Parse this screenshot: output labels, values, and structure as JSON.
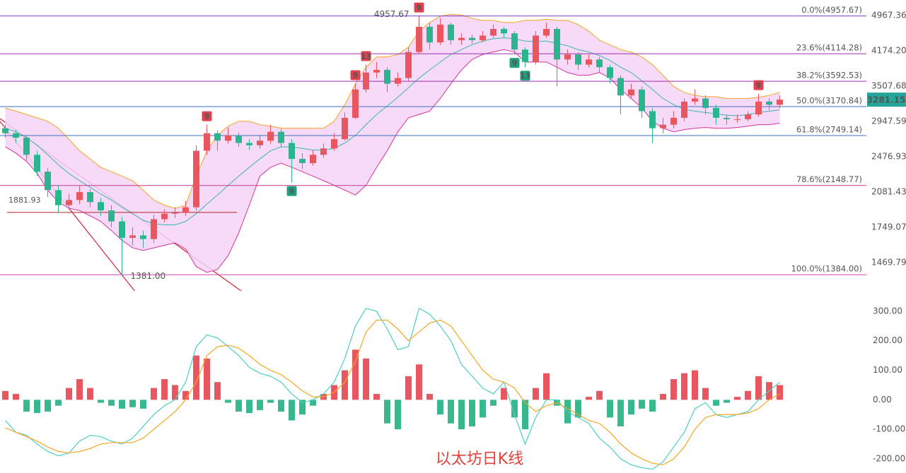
{
  "chart_data": [
    {
      "type": "candlestick",
      "log_scale": true,
      "grid": false,
      "ylim": [
        1287,
        5363
      ],
      "yticks": [
        4967.36,
        {
          "value": 4174.2,
          "label": "4174.20"
        },
        3507.68,
        2947.59,
        2476.93,
        2081.43,
        1749.07,
        1469.79
      ],
      "up_color": "#e8575f",
      "down_color": "#2bb58e",
      "candles": [
        {
          "open": 2850,
          "high": 2900,
          "low": 2720,
          "close": 2780
        },
        {
          "open": 2780,
          "high": 2830,
          "low": 2650,
          "close": 2720
        },
        {
          "open": 2720,
          "high": 2760,
          "low": 2430,
          "close": 2500
        },
        {
          "open": 2500,
          "high": 2550,
          "low": 2250,
          "close": 2300
        },
        {
          "open": 2300,
          "high": 2340,
          "low": 2030,
          "close": 2100
        },
        {
          "open": 2100,
          "high": 2150,
          "low": 1880,
          "close": 1950
        },
        {
          "open": 1950,
          "high": 2060,
          "low": 1910,
          "close": 2000
        },
        {
          "open": 2000,
          "high": 2140,
          "low": 1960,
          "close": 2080
        },
        {
          "open": 2080,
          "high": 2110,
          "low": 1930,
          "close": 1980
        },
        {
          "open": 1980,
          "high": 2020,
          "low": 1850,
          "close": 1900
        },
        {
          "open": 1900,
          "high": 1950,
          "low": 1750,
          "close": 1800
        },
        {
          "open": 1800,
          "high": 1840,
          "low": 1381,
          "close": 1660
        },
        {
          "open": 1660,
          "high": 1750,
          "low": 1600,
          "close": 1680
        },
        {
          "open": 1680,
          "high": 1720,
          "low": 1580,
          "close": 1650
        },
        {
          "open": 1650,
          "high": 1860,
          "low": 1620,
          "close": 1820
        },
        {
          "open": 1820,
          "high": 1910,
          "low": 1790,
          "close": 1870
        },
        {
          "open": 1870,
          "high": 1930,
          "low": 1830,
          "close": 1880
        },
        {
          "open": 1880,
          "high": 1990,
          "low": 1850,
          "close": 1930
        },
        {
          "open": 1930,
          "high": 2620,
          "low": 1900,
          "close": 2550
        },
        {
          "open": 2550,
          "high": 2900,
          "low": 2500,
          "close": 2780
        },
        {
          "open": 2780,
          "high": 2820,
          "low": 2550,
          "close": 2680
        },
        {
          "open": 2680,
          "high": 2860,
          "low": 2640,
          "close": 2750
        },
        {
          "open": 2750,
          "high": 2790,
          "low": 2600,
          "close": 2650
        },
        {
          "open": 2650,
          "high": 2700,
          "low": 2560,
          "close": 2620
        },
        {
          "open": 2620,
          "high": 2760,
          "low": 2580,
          "close": 2680
        },
        {
          "open": 2680,
          "high": 2900,
          "low": 2640,
          "close": 2800
        },
        {
          "open": 2800,
          "high": 2840,
          "low": 2600,
          "close": 2650
        },
        {
          "open": 2650,
          "high": 2700,
          "low": 2180,
          "close": 2450
        },
        {
          "open": 2450,
          "high": 2520,
          "low": 2330,
          "close": 2400
        },
        {
          "open": 2400,
          "high": 2560,
          "low": 2370,
          "close": 2500
        },
        {
          "open": 2500,
          "high": 2640,
          "low": 2460,
          "close": 2580
        },
        {
          "open": 2580,
          "high": 2780,
          "low": 2550,
          "close": 2700
        },
        {
          "open": 2700,
          "high": 3080,
          "low": 2680,
          "close": 3000
        },
        {
          "open": 3000,
          "high": 3550,
          "low": 2980,
          "close": 3450
        },
        {
          "open": 3450,
          "high": 3900,
          "low": 3400,
          "close": 3750
        },
        {
          "open": 3750,
          "high": 3950,
          "low": 3650,
          "close": 3800
        },
        {
          "open": 3800,
          "high": 3850,
          "low": 3400,
          "close": 3550
        },
        {
          "open": 3550,
          "high": 3750,
          "low": 3500,
          "close": 3650
        },
        {
          "open": 3650,
          "high": 4250,
          "low": 3600,
          "close": 4150
        },
        {
          "open": 4150,
          "high": 4957.67,
          "low": 4100,
          "close": 4700
        },
        {
          "open": 4700,
          "high": 4800,
          "low": 4200,
          "close": 4350
        },
        {
          "open": 4350,
          "high": 4900,
          "low": 4300,
          "close": 4750
        },
        {
          "open": 4750,
          "high": 4800,
          "low": 4300,
          "close": 4400
        },
        {
          "open": 4400,
          "high": 4550,
          "low": 4300,
          "close": 4450
        },
        {
          "open": 4450,
          "high": 4520,
          "low": 4320,
          "close": 4400
        },
        {
          "open": 4400,
          "high": 4600,
          "low": 4350,
          "close": 4500
        },
        {
          "open": 4500,
          "high": 4750,
          "low": 4450,
          "close": 4650
        },
        {
          "open": 4650,
          "high": 4700,
          "low": 4450,
          "close": 4550
        },
        {
          "open": 4550,
          "high": 4600,
          "low": 4100,
          "close": 4200
        },
        {
          "open": 4200,
          "high": 4250,
          "low": 3850,
          "close": 3950
        },
        {
          "open": 3950,
          "high": 4600,
          "low": 3900,
          "close": 4500
        },
        {
          "open": 4500,
          "high": 4800,
          "low": 4450,
          "close": 4650
        },
        {
          "open": 4650,
          "high": 4700,
          "low": 3500,
          "close": 4000
        },
        {
          "open": 4000,
          "high": 4200,
          "low": 3900,
          "close": 4100
        },
        {
          "open": 4100,
          "high": 4150,
          "low": 3800,
          "close": 3900
        },
        {
          "open": 3900,
          "high": 4100,
          "low": 3850,
          "close": 4000
        },
        {
          "open": 4000,
          "high": 4050,
          "low": 3750,
          "close": 3850
        },
        {
          "open": 3850,
          "high": 3900,
          "low": 3550,
          "close": 3650
        },
        {
          "open": 3650,
          "high": 3700,
          "low": 3050,
          "close": 3350
        },
        {
          "open": 3350,
          "high": 3550,
          "low": 3300,
          "close": 3450
        },
        {
          "open": 3450,
          "high": 3500,
          "low": 3000,
          "close": 3100
        },
        {
          "open": 3100,
          "high": 3150,
          "low": 2650,
          "close": 2850
        },
        {
          "open": 2850,
          "high": 3000,
          "low": 2780,
          "close": 2900
        },
        {
          "open": 2900,
          "high": 3100,
          "low": 2850,
          "close": 3000
        },
        {
          "open": 3000,
          "high": 3300,
          "low": 2950,
          "close": 3250
        },
        {
          "open": 3250,
          "high": 3450,
          "low": 3200,
          "close": 3300
        },
        {
          "open": 3300,
          "high": 3350,
          "low": 3050,
          "close": 3150
        },
        {
          "open": 3150,
          "high": 3200,
          "low": 2900,
          "close": 3000
        },
        {
          "open": 3000,
          "high": 3050,
          "low": 2900,
          "close": 2980
        },
        {
          "open": 2980,
          "high": 3050,
          "low": 2930,
          "close": 2980
        },
        {
          "open": 2980,
          "high": 3100,
          "low": 2950,
          "close": 3050
        },
        {
          "open": 3050,
          "high": 3380,
          "low": 3020,
          "close": 3250
        },
        {
          "open": 3250,
          "high": 3300,
          "low": 3120,
          "close": 3200
        },
        {
          "open": 3200,
          "high": 3350,
          "low": 3150,
          "close": 3281.15
        }
      ],
      "bands": {
        "fill": "#f4d3f6",
        "upper_color": "#f5a623",
        "middle_color": "#3cb5b0",
        "lower_color": "#d6339e",
        "upper": [
          3150,
          3100,
          3050,
          3000,
          2950,
          2850,
          2700,
          2550,
          2450,
          2350,
          2300,
          2250,
          2200,
          2100,
          2000,
          1950,
          1920,
          1950,
          2250,
          2550,
          2750,
          2880,
          2950,
          2950,
          2900,
          2880,
          2850,
          2850,
          2850,
          2850,
          2850,
          2950,
          3200,
          3550,
          3850,
          4050,
          4050,
          4100,
          4250,
          4600,
          4800,
          4950,
          5000,
          4980,
          4900,
          4850,
          4850,
          4800,
          4800,
          4850,
          4850,
          4880,
          4850,
          4850,
          4750,
          4600,
          4400,
          4300,
          4200,
          4150,
          4050,
          3900,
          3700,
          3500,
          3400,
          3350,
          3330,
          3330,
          3300,
          3300,
          3300,
          3320,
          3350,
          3400
        ],
        "middle": [
          2850,
          2800,
          2720,
          2620,
          2500,
          2380,
          2280,
          2200,
          2130,
          2060,
          2000,
          1930,
          1870,
          1810,
          1780,
          1770,
          1770,
          1800,
          1870,
          1960,
          2050,
          2150,
          2250,
          2350,
          2450,
          2550,
          2600,
          2600,
          2580,
          2560,
          2560,
          2580,
          2650,
          2750,
          2900,
          3050,
          3180,
          3320,
          3480,
          3650,
          3800,
          3950,
          4100,
          4200,
          4300,
          4380,
          4430,
          4450,
          4430,
          4380,
          4370,
          4380,
          4330,
          4280,
          4200,
          4150,
          4080,
          3980,
          3850,
          3750,
          3600,
          3450,
          3300,
          3200,
          3130,
          3100,
          3080,
          3060,
          3040,
          3030,
          3050,
          3080,
          3100,
          3120
        ],
        "lower": [
          2600,
          2520,
          2420,
          2280,
          2100,
          1980,
          1920,
          1900,
          1850,
          1800,
          1720,
          1640,
          1580,
          1560,
          1580,
          1600,
          1620,
          1570,
          1440,
          1400,
          1420,
          1520,
          1700,
          1950,
          2250,
          2350,
          2400,
          2350,
          2300,
          2250,
          2200,
          2150,
          2100,
          2050,
          2150,
          2350,
          2550,
          2800,
          3000,
          3050,
          3100,
          3300,
          3550,
          3800,
          4000,
          4100,
          4150,
          4200,
          4150,
          3950,
          3950,
          3950,
          3850,
          3750,
          3700,
          3700,
          3750,
          3650,
          3450,
          3300,
          3150,
          2950,
          2850,
          2800,
          2830,
          2850,
          2860,
          2850,
          2850,
          2860,
          2880,
          2900,
          2900,
          2920
        ]
      },
      "fib_levels": [
        {
          "value": 4957.67,
          "label": "0.0%(4957.67)",
          "color": "#7b3fc4"
        },
        {
          "value": 4114.28,
          "label": "23.6%(4114.28)",
          "color": "#9b2fae"
        },
        {
          "value": 3592.53,
          "label": "38.2%(3592.53)",
          "color": "#9b2fae"
        },
        {
          "value": 3170.84,
          "label": "50.0%(3170.84)",
          "color": "#3d6fc4"
        },
        {
          "value": 2749.14,
          "label": "61.8%(2749.14)",
          "color": "#3d6fc4"
        },
        {
          "value": 2148.77,
          "label": "78.6%(2148.77)",
          "color": "#c2378f"
        },
        {
          "value": 1384.0,
          "label": "100.0%(1384.00)",
          "color": "#d446b0"
        }
      ],
      "hline": {
        "value": 1881.93,
        "label": "1881.93",
        "color": "#b0202a"
      },
      "annotations": [
        {
          "candle": 39,
          "label": "4957.67"
        },
        {
          "candle": 11,
          "label": "1381.00"
        }
      ],
      "td_marks": [
        {
          "candle": 19,
          "label": "9",
          "side": "up"
        },
        {
          "candle": 27,
          "label": "9",
          "side": "down"
        },
        {
          "candle": 33,
          "label": "9",
          "side": "up"
        },
        {
          "candle": 34,
          "label": "13",
          "side": "up"
        },
        {
          "candle": 39,
          "label": "9",
          "side": "up"
        },
        {
          "candle": 48,
          "label": "9",
          "side": "down"
        },
        {
          "candle": 49,
          "label": "13",
          "side": "down"
        },
        {
          "candle": 71,
          "label": "9",
          "side": "up"
        }
      ],
      "last_price": 3281.15,
      "last_color": "#26a69a"
    },
    {
      "type": "macd",
      "title": "以太坊日K线",
      "ylim": [
        -248,
        350
      ],
      "yticks": [
        {
          "value": 300,
          "label": "300.00"
        },
        {
          "value": 200,
          "label": "200.00"
        },
        {
          "value": 100,
          "label": "100.00"
        },
        {
          "value": 0,
          "label": "0.00"
        },
        {
          "value": -100,
          "label": "-100.00"
        },
        {
          "value": -200,
          "label": "-200.00"
        }
      ],
      "up_color": "#e8575f",
      "down_color": "#38b88e",
      "dif_color": "#4dd0c0",
      "dea_color": "#f5a623",
      "histogram": [
        30,
        20,
        -40,
        -45,
        -40,
        -20,
        40,
        70,
        40,
        -10,
        -20,
        -30,
        -25,
        -30,
        40,
        70,
        50,
        30,
        150,
        140,
        60,
        -10,
        -40,
        -45,
        -35,
        -10,
        -40,
        -70,
        -50,
        -20,
        20,
        50,
        100,
        170,
        140,
        20,
        -80,
        -100,
        80,
        120,
        20,
        -50,
        -80,
        -100,
        -90,
        -60,
        -20,
        40,
        -60,
        -100,
        40,
        90,
        -20,
        -80,
        -60,
        10,
        30,
        -60,
        -90,
        -50,
        -30,
        -40,
        20,
        70,
        90,
        100,
        40,
        -20,
        -10,
        10,
        30,
        80,
        60,
        50
      ],
      "dif": [
        -70,
        -110,
        -120,
        -150,
        -175,
        -190,
        -180,
        -140,
        -120,
        -125,
        -140,
        -150,
        -130,
        -90,
        -50,
        -20,
        0,
        60,
        180,
        220,
        210,
        180,
        150,
        110,
        90,
        80,
        60,
        20,
        -10,
        0,
        20,
        60,
        140,
        250,
        310,
        300,
        240,
        170,
        180,
        310,
        290,
        250,
        200,
        120,
        80,
        40,
        20,
        60,
        -50,
        -150,
        -60,
        0,
        0,
        -40,
        -60,
        -80,
        -130,
        -160,
        -200,
        -220,
        -230,
        -235,
        -210,
        -160,
        -110,
        -30,
        -10,
        -50,
        -60,
        -50,
        -40,
        0,
        30,
        60
      ],
      "dea": [
        -95,
        -110,
        -125,
        -140,
        -160,
        -175,
        -180,
        -175,
        -165,
        -150,
        -145,
        -145,
        -145,
        -130,
        -100,
        -70,
        -40,
        0,
        60,
        150,
        180,
        185,
        175,
        150,
        120,
        100,
        85,
        60,
        30,
        10,
        10,
        25,
        60,
        130,
        230,
        270,
        270,
        240,
        200,
        230,
        260,
        270,
        250,
        200,
        150,
        100,
        70,
        60,
        40,
        -10,
        -40,
        -20,
        -10,
        -30,
        -50,
        -70,
        -80,
        -110,
        -150,
        -180,
        -200,
        -215,
        -220,
        -200,
        -160,
        -100,
        -60,
        -50,
        -50,
        -50,
        -45,
        -30,
        0,
        20
      ]
    }
  ]
}
